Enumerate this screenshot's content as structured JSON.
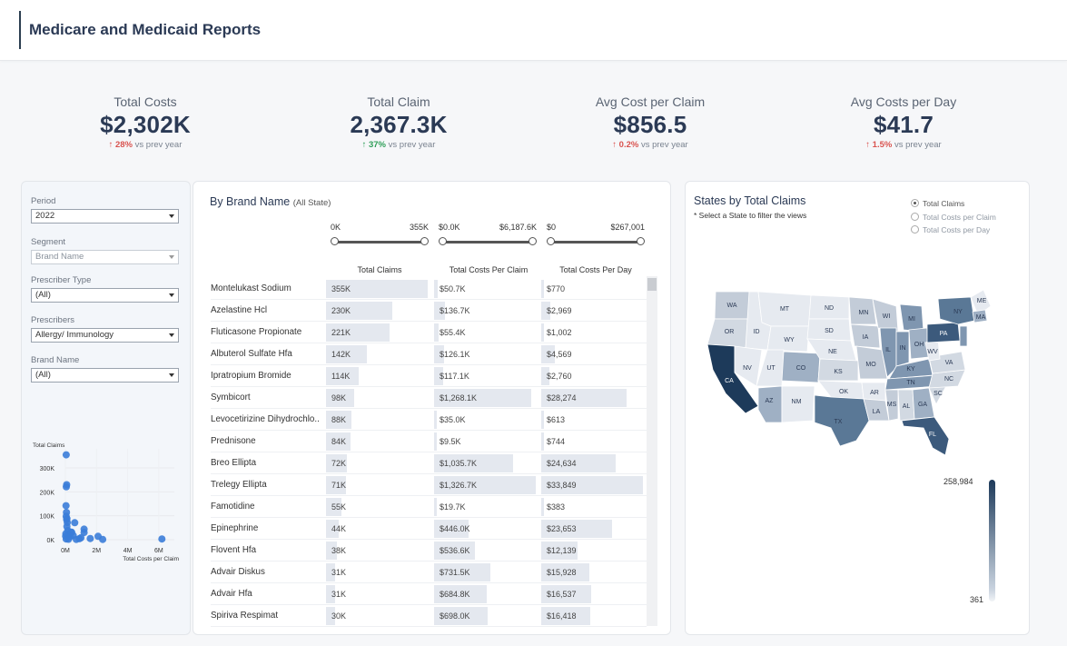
{
  "header": {
    "title": "Medicare and Medicaid Reports"
  },
  "kpis": [
    {
      "label": "Total Costs",
      "value": "$2,302K",
      "delta": "28%",
      "suffix": "vs prev year",
      "color": "#d9534f"
    },
    {
      "label": "Total Claim",
      "value": "2,367.3K",
      "delta": "37%",
      "suffix": "vs prev year",
      "color": "#2e9e58"
    },
    {
      "label": "Avg Cost per Claim",
      "value": "$856.5",
      "delta": "0.2%",
      "suffix": "vs prev year",
      "color": "#d9534f"
    },
    {
      "label": "Avg Costs per Day",
      "value": "$41.7",
      "delta": "1.5%",
      "suffix": "vs prev year",
      "color": "#d9534f"
    }
  ],
  "filters": {
    "period": {
      "label": "Period",
      "value": "2022"
    },
    "segment": {
      "label": "Segment",
      "value": "Brand Name"
    },
    "prescriber_type": {
      "label": "Prescriber Type",
      "value": "(All)"
    },
    "prescribers": {
      "label": "Prescribers",
      "value": "Allergy/ Immunology"
    },
    "brand_name": {
      "label": "Brand Name",
      "value": "(All)"
    }
  },
  "scatter": {
    "ylabel": "Total Claims",
    "xlabel": "Total Costs per Claim",
    "yticks": [
      "300K",
      "200K",
      "100K",
      "0K"
    ],
    "xticks": [
      "0M",
      "2M",
      "4M",
      "6M"
    ],
    "color": "#3b7dd8",
    "points": [
      [
        0.05,
        355
      ],
      [
        0.08,
        230
      ],
      [
        0.06,
        221
      ],
      [
        0.04,
        142
      ],
      [
        0.07,
        114
      ],
      [
        0.05,
        98
      ],
      [
        0.1,
        88
      ],
      [
        0.08,
        84
      ],
      [
        0.12,
        72
      ],
      [
        0.6,
        71
      ],
      [
        0.1,
        55
      ],
      [
        1.2,
        44
      ],
      [
        0.15,
        38
      ],
      [
        0.4,
        31
      ],
      [
        0.35,
        31
      ],
      [
        1.2,
        30
      ],
      [
        0.03,
        25
      ],
      [
        0.2,
        20
      ],
      [
        0.5,
        18
      ],
      [
        0.02,
        15
      ],
      [
        2.1,
        14
      ],
      [
        0.3,
        12
      ],
      [
        1.0,
        8
      ],
      [
        1.6,
        5
      ],
      [
        0.9,
        4
      ],
      [
        0.05,
        3
      ],
      [
        6.2,
        3
      ],
      [
        0.2,
        2
      ],
      [
        0.7,
        1
      ],
      [
        2.4,
        1
      ]
    ]
  },
  "brand_table": {
    "title": "By Brand Name",
    "subtitle": "(All State)",
    "sliders": [
      {
        "lo": "0K",
        "hi": "355K"
      },
      {
        "lo": "$0.0K",
        "hi": "$6,187.6K"
      },
      {
        "lo": "$0",
        "hi": "$267,001"
      }
    ],
    "columns": [
      "Total Claims",
      "Total Costs Per Claim",
      "Total Costs Per Day"
    ],
    "rows": [
      {
        "name": "Montelukast Sodium",
        "claims": "355K",
        "claims_v": 355,
        "cpc": "$50.7K",
        "cpc_v": 50.7,
        "cpd": "$770",
        "cpd_v": 770
      },
      {
        "name": "Azelastine Hcl",
        "claims": "230K",
        "claims_v": 230,
        "cpc": "$136.7K",
        "cpc_v": 136.7,
        "cpd": "$2,969",
        "cpd_v": 2969
      },
      {
        "name": "Fluticasone Propionate",
        "claims": "221K",
        "claims_v": 221,
        "cpc": "$55.4K",
        "cpc_v": 55.4,
        "cpd": "$1,002",
        "cpd_v": 1002
      },
      {
        "name": "Albuterol Sulfate Hfa",
        "claims": "142K",
        "claims_v": 142,
        "cpc": "$126.1K",
        "cpc_v": 126.1,
        "cpd": "$4,569",
        "cpd_v": 4569
      },
      {
        "name": "Ipratropium Bromide",
        "claims": "114K",
        "claims_v": 114,
        "cpc": "$117.1K",
        "cpc_v": 117.1,
        "cpd": "$2,760",
        "cpd_v": 2760
      },
      {
        "name": "Symbicort",
        "claims": "98K",
        "claims_v": 98,
        "cpc": "$1,268.1K",
        "cpc_v": 1268.1,
        "cpd": "$28,274",
        "cpd_v": 28274
      },
      {
        "name": "Levocetirizine Dihydrochlo..",
        "claims": "88K",
        "claims_v": 88,
        "cpc": "$35.0K",
        "cpc_v": 35.0,
        "cpd": "$613",
        "cpd_v": 613
      },
      {
        "name": "Prednisone",
        "claims": "84K",
        "claims_v": 84,
        "cpc": "$9.5K",
        "cpc_v": 9.5,
        "cpd": "$744",
        "cpd_v": 744
      },
      {
        "name": "Breo Ellipta",
        "claims": "72K",
        "claims_v": 72,
        "cpc": "$1,035.7K",
        "cpc_v": 1035.7,
        "cpd": "$24,634",
        "cpd_v": 24634
      },
      {
        "name": "Trelegy Ellipta",
        "claims": "71K",
        "claims_v": 71,
        "cpc": "$1,326.7K",
        "cpc_v": 1326.7,
        "cpd": "$33,849",
        "cpd_v": 33849
      },
      {
        "name": "Famotidine",
        "claims": "55K",
        "claims_v": 55,
        "cpc": "$19.7K",
        "cpc_v": 19.7,
        "cpd": "$383",
        "cpd_v": 383
      },
      {
        "name": "Epinephrine",
        "claims": "44K",
        "claims_v": 44,
        "cpc": "$446.0K",
        "cpc_v": 446.0,
        "cpd": "$23,653",
        "cpd_v": 23653
      },
      {
        "name": "Flovent Hfa",
        "claims": "38K",
        "claims_v": 38,
        "cpc": "$536.6K",
        "cpc_v": 536.6,
        "cpd": "$12,139",
        "cpd_v": 12139
      },
      {
        "name": "Advair Diskus",
        "claims": "31K",
        "claims_v": 31,
        "cpc": "$731.5K",
        "cpc_v": 731.5,
        "cpd": "$15,928",
        "cpd_v": 15928
      },
      {
        "name": "Advair Hfa",
        "claims": "31K",
        "claims_v": 31,
        "cpc": "$684.8K",
        "cpc_v": 684.8,
        "cpd": "$16,537",
        "cpd_v": 16537
      },
      {
        "name": "Spiriva Respimat",
        "claims": "30K",
        "claims_v": 30,
        "cpc": "$698.0K",
        "cpc_v": 698.0,
        "cpd": "$16,418",
        "cpd_v": 16418
      }
    ]
  },
  "map_panel": {
    "title": "States by Total Claims",
    "subtitle": "* Select a State to filter the views",
    "options": [
      "Total Claims",
      "Total Costs per Claim",
      "Total Costs per Day"
    ],
    "selected_option": "Total Claims",
    "legend_max": "258,984",
    "legend_min": "361",
    "color_dark": "#1d3a5a",
    "color_light": "#e6eaf0"
  }
}
